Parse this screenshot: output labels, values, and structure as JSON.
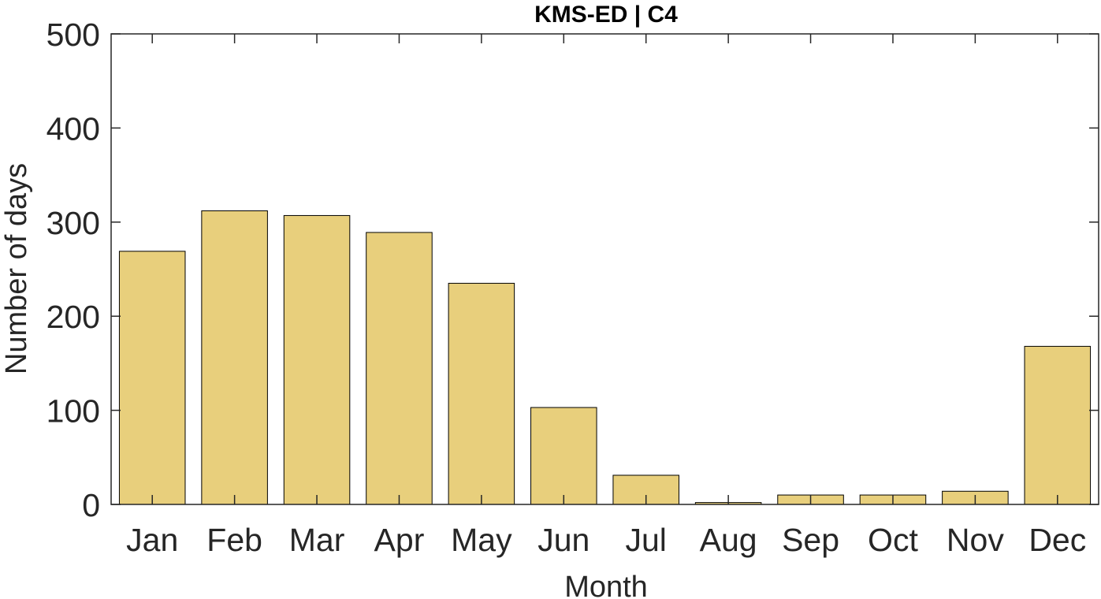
{
  "chart_data": {
    "type": "bar",
    "title": "KMS-ED | C4",
    "xlabel": "Month",
    "ylabel": "Number of days",
    "categories": [
      "Jan",
      "Feb",
      "Mar",
      "Apr",
      "May",
      "Jun",
      "Jul",
      "Aug",
      "Sep",
      "Oct",
      "Nov",
      "Dec"
    ],
    "values": [
      269,
      312,
      307,
      289,
      235,
      103,
      31,
      2,
      10,
      10,
      14,
      168
    ],
    "ylim": [
      0,
      500
    ],
    "yticks": [
      "0",
      "100",
      "200",
      "300",
      "400",
      "500"
    ],
    "grid": false,
    "legend": "none",
    "colors": {
      "bar_fill": "#E8CF7C",
      "bar_edge": "#000000",
      "axis": "#262626",
      "title": "#000000"
    }
  }
}
